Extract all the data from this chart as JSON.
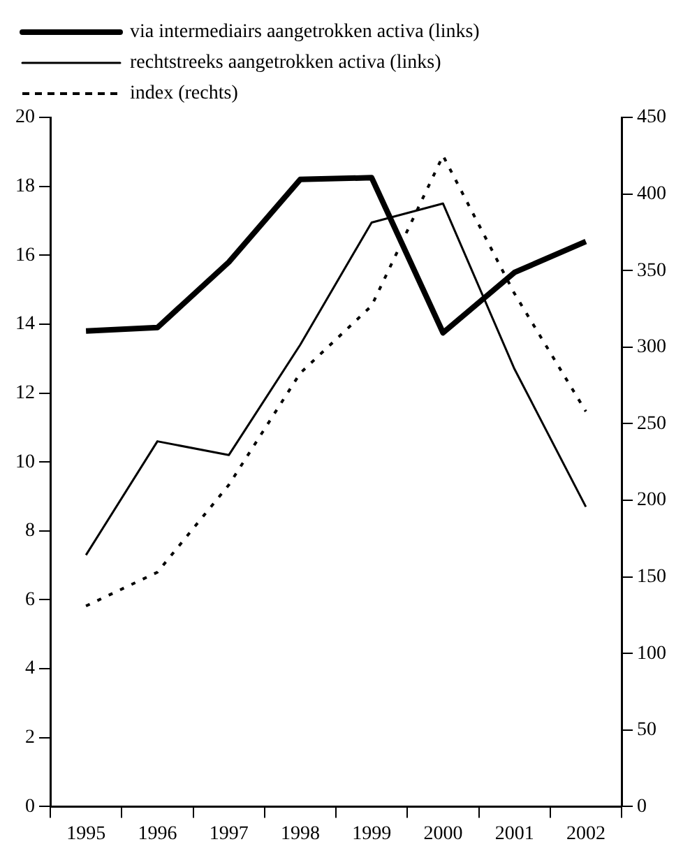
{
  "chart_data": {
    "type": "line",
    "categories": [
      "1995",
      "1996",
      "1997",
      "1998",
      "1999",
      "2000",
      "2001",
      "2002"
    ],
    "series": [
      {
        "name": "via intermediairs aangetrokken activa (links)",
        "color": "#000000",
        "line_style": "solid",
        "values": [
          13.8,
          13.9,
          15.8,
          18.2,
          18.25,
          13.75,
          15.5,
          16.4
        ]
      },
      {
        "name": "rechtstreeks aangetrokken activa (links)",
        "color": "#000000",
        "line_style": "solid",
        "values": [
          7.3,
          10.6,
          10.2,
          13.4,
          16.95,
          17.5,
          12.7,
          8.7
        ]
      },
      {
        "name": "index (rechts)",
        "color": "#000000",
        "line_style": "dotted",
        "axis": "y2",
        "values": [
          131,
          153,
          210,
          283,
          327,
          425,
          335,
          258
        ]
      }
    ],
    "ylim": [
      0,
      20
    ],
    "yticks": [
      0,
      2,
      4,
      6,
      8,
      10,
      12,
      14,
      16,
      18,
      20
    ],
    "y2lim": [
      0,
      450
    ],
    "y2ticks": [
      0,
      50,
      100,
      150,
      200,
      250,
      300,
      350,
      400,
      450
    ],
    "grid": false,
    "legend": "top",
    "marker": "none"
  }
}
